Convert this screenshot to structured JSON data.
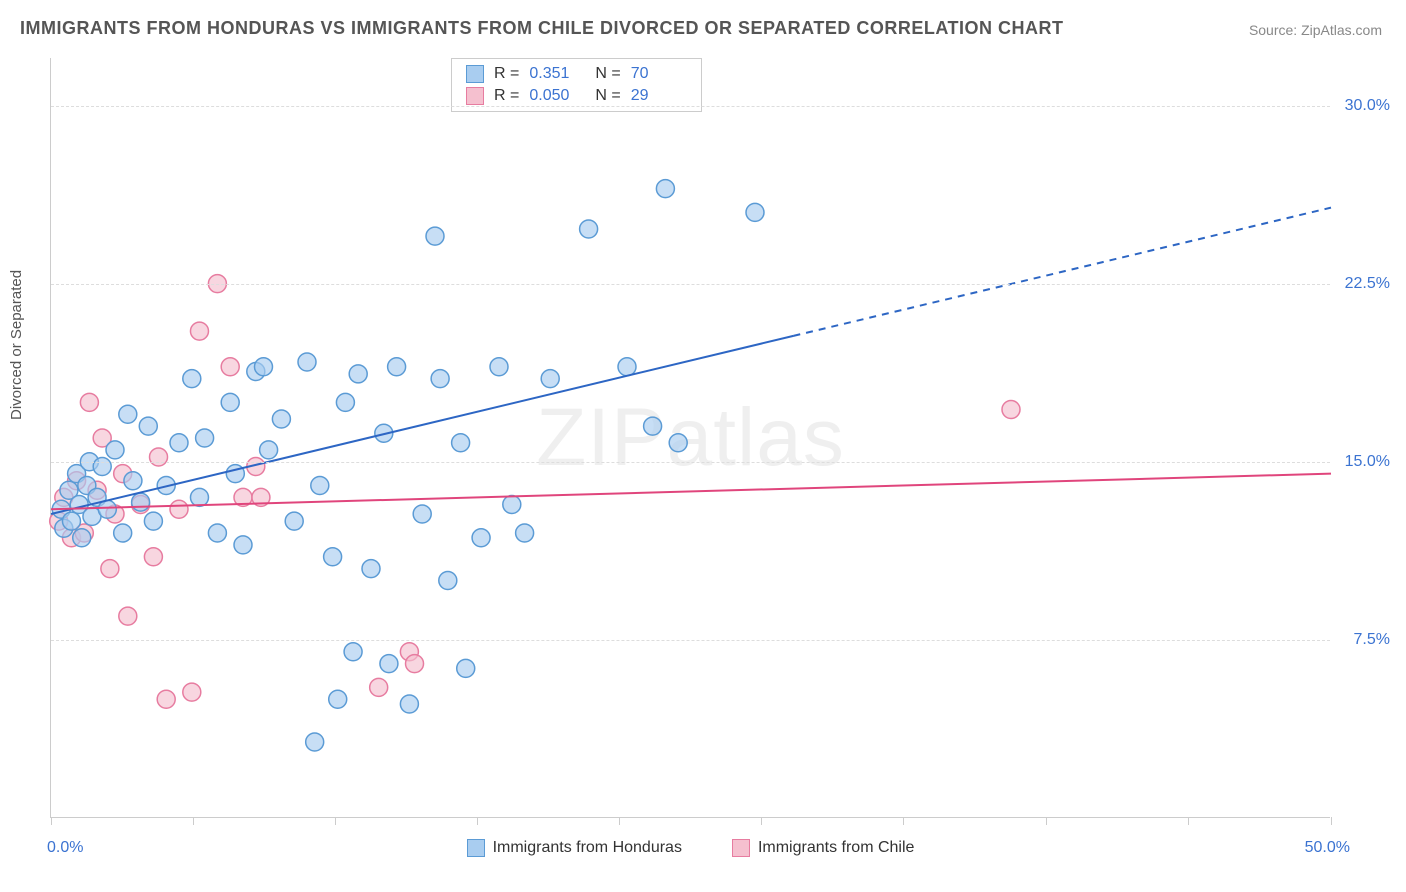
{
  "title": "IMMIGRANTS FROM HONDURAS VS IMMIGRANTS FROM CHILE DIVORCED OR SEPARATED CORRELATION CHART",
  "source": "Source: ZipAtlas.com",
  "watermark": "ZIPatlas",
  "ylabel": "Divorced or Separated",
  "chart": {
    "type": "scatter",
    "xlim": [
      0,
      50
    ],
    "ylim": [
      0,
      32
    ],
    "x_ticks_pct": [
      0,
      5.55,
      11.1,
      16.65,
      22.2,
      27.75,
      33.3,
      38.85,
      44.4,
      50
    ],
    "y_gridlines": [
      7.5,
      15.0,
      22.5,
      30.0
    ],
    "y_tick_labels": [
      "7.5%",
      "15.0%",
      "22.5%",
      "30.0%"
    ],
    "x_start_label": "0.0%",
    "x_end_label": "50.0%",
    "background_color": "#ffffff",
    "grid_color": "#dddddd",
    "border_color": "#cccccc",
    "marker_radius": 9,
    "marker_stroke_width": 1.5,
    "line_width": 2
  },
  "series": [
    {
      "name": "Immigrants from Honduras",
      "fill_color": "#a9cdf0",
      "stroke_color": "#5b9bd5",
      "trend_color": "#2d66c4",
      "R": "0.351",
      "N": "70",
      "trend": {
        "x1": 0,
        "y1": 12.8,
        "x2_solid": 29,
        "y2_solid": 20.3,
        "x2_dash": 50,
        "y2_dash": 25.7
      },
      "points": [
        [
          0.4,
          13.0
        ],
        [
          0.5,
          12.2
        ],
        [
          0.7,
          13.8
        ],
        [
          0.8,
          12.5
        ],
        [
          1.0,
          14.5
        ],
        [
          1.1,
          13.2
        ],
        [
          1.2,
          11.8
        ],
        [
          1.4,
          14.0
        ],
        [
          1.5,
          15.0
        ],
        [
          1.6,
          12.7
        ],
        [
          1.8,
          13.5
        ],
        [
          2.0,
          14.8
        ],
        [
          2.2,
          13.0
        ],
        [
          2.5,
          15.5
        ],
        [
          2.8,
          12.0
        ],
        [
          3.0,
          17.0
        ],
        [
          3.2,
          14.2
        ],
        [
          3.5,
          13.3
        ],
        [
          3.8,
          16.5
        ],
        [
          4.0,
          12.5
        ],
        [
          4.5,
          14.0
        ],
        [
          5.0,
          15.8
        ],
        [
          5.5,
          18.5
        ],
        [
          5.8,
          13.5
        ],
        [
          6.0,
          16.0
        ],
        [
          6.5,
          12.0
        ],
        [
          7.0,
          17.5
        ],
        [
          7.2,
          14.5
        ],
        [
          7.5,
          11.5
        ],
        [
          8.0,
          18.8
        ],
        [
          8.3,
          19.0
        ],
        [
          8.5,
          15.5
        ],
        [
          9.0,
          16.8
        ],
        [
          9.5,
          12.5
        ],
        [
          10.0,
          19.2
        ],
        [
          10.3,
          3.2
        ],
        [
          10.5,
          14.0
        ],
        [
          11.0,
          11.0
        ],
        [
          11.2,
          5.0
        ],
        [
          11.5,
          17.5
        ],
        [
          11.8,
          7.0
        ],
        [
          12.0,
          18.7
        ],
        [
          12.5,
          10.5
        ],
        [
          13.0,
          16.2
        ],
        [
          13.2,
          6.5
        ],
        [
          13.5,
          19.0
        ],
        [
          14.0,
          4.8
        ],
        [
          14.5,
          12.8
        ],
        [
          15.0,
          24.5
        ],
        [
          15.2,
          18.5
        ],
        [
          15.5,
          10.0
        ],
        [
          16.0,
          15.8
        ],
        [
          16.2,
          6.3
        ],
        [
          16.8,
          11.8
        ],
        [
          17.5,
          19.0
        ],
        [
          18.0,
          13.2
        ],
        [
          18.5,
          12.0
        ],
        [
          19.5,
          18.5
        ],
        [
          21.0,
          24.8
        ],
        [
          22.5,
          19.0
        ],
        [
          23.5,
          16.5
        ],
        [
          24.0,
          26.5
        ],
        [
          24.5,
          15.8
        ],
        [
          27.5,
          25.5
        ]
      ]
    },
    {
      "name": "Immigrants from Chile",
      "fill_color": "#f5c0cf",
      "stroke_color": "#e77ca0",
      "trend_color": "#e0457c",
      "R": "0.050",
      "N": "29",
      "trend": {
        "x1": 0,
        "y1": 13.0,
        "x2_solid": 50,
        "y2_solid": 14.5,
        "x2_dash": 50,
        "y2_dash": 14.5
      },
      "points": [
        [
          0.3,
          12.5
        ],
        [
          0.5,
          13.5
        ],
        [
          0.8,
          11.8
        ],
        [
          1.0,
          14.2
        ],
        [
          1.3,
          12.0
        ],
        [
          1.5,
          17.5
        ],
        [
          1.8,
          13.8
        ],
        [
          2.0,
          16.0
        ],
        [
          2.3,
          10.5
        ],
        [
          2.5,
          12.8
        ],
        [
          2.8,
          14.5
        ],
        [
          3.0,
          8.5
        ],
        [
          3.5,
          13.2
        ],
        [
          4.0,
          11.0
        ],
        [
          4.2,
          15.2
        ],
        [
          4.5,
          5.0
        ],
        [
          5.0,
          13.0
        ],
        [
          5.5,
          5.3
        ],
        [
          5.8,
          20.5
        ],
        [
          6.5,
          22.5
        ],
        [
          7.0,
          19.0
        ],
        [
          7.5,
          13.5
        ],
        [
          8.0,
          14.8
        ],
        [
          8.2,
          13.5
        ],
        [
          12.8,
          5.5
        ],
        [
          14.0,
          7.0
        ],
        [
          14.2,
          6.5
        ],
        [
          37.5,
          17.2
        ]
      ]
    }
  ],
  "stats_box": {
    "rows": [
      {
        "swatch": 0,
        "r_label": "R =",
        "r_val": "0.351",
        "n_label": "N =",
        "n_val": "70"
      },
      {
        "swatch": 1,
        "r_label": "R =",
        "r_val": "0.050",
        "n_label": "N =",
        "n_val": "29"
      }
    ]
  },
  "legend": {
    "items": [
      {
        "series": 0,
        "label": "Immigrants from Honduras"
      },
      {
        "series": 1,
        "label": "Immigrants from Chile"
      }
    ]
  }
}
